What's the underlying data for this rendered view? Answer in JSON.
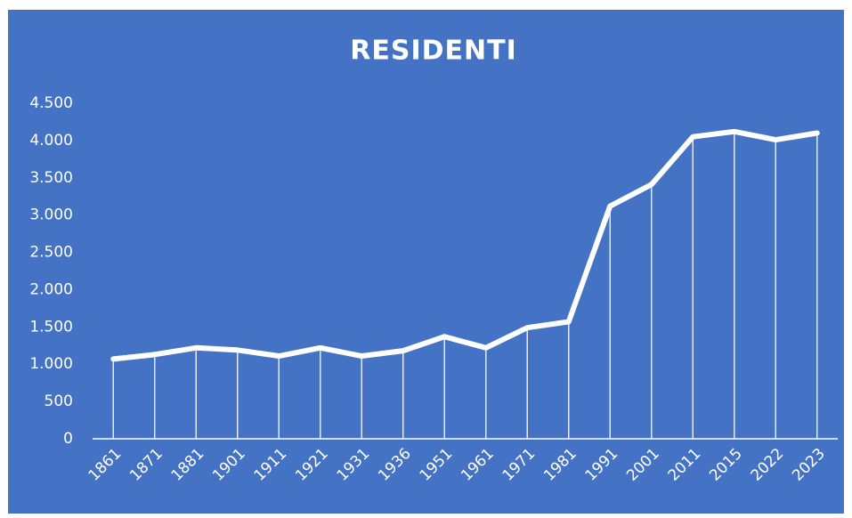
{
  "chart_data": {
    "type": "line",
    "title": "RESIDENTI",
    "categories": [
      "1861",
      "1871",
      "1881",
      "1901",
      "1911",
      "1921",
      "1931",
      "1936",
      "1951",
      "1961",
      "1971",
      "1981",
      "1991",
      "2001",
      "2011",
      "2015",
      "2022",
      "2023"
    ],
    "values": [
      1070,
      1130,
      1220,
      1190,
      1110,
      1220,
      1110,
      1180,
      1370,
      1220,
      1490,
      1570,
      3120,
      3410,
      4050,
      4120,
      4010,
      4100
    ],
    "color": "#ffffff",
    "ylim": [
      0,
      4500
    ],
    "yticks": [
      0,
      500,
      {
        "value": 1000,
        "label": "1.000"
      },
      {
        "value": 1500,
        "label": "1.500"
      },
      {
        "value": 2000,
        "label": "2.000"
      },
      {
        "value": 2500,
        "label": "2.500"
      },
      {
        "value": 3000,
        "label": "3.000"
      },
      {
        "value": 3500,
        "label": "3.500"
      },
      {
        "value": 4000,
        "label": "4.000"
      },
      {
        "value": 4500,
        "label": "4.500"
      }
    ],
    "drop_lines": true,
    "grid": false
  }
}
